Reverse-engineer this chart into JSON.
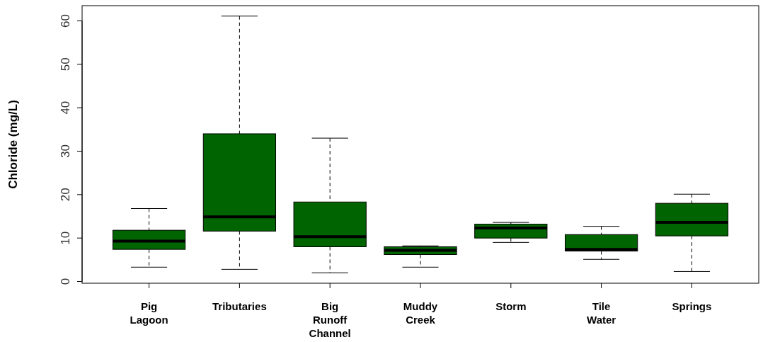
{
  "chart_data": {
    "type": "box",
    "ylabel": "Chloride (mg/L)",
    "categories": [
      "Pig Lagoon",
      "Tributaries",
      "Big Runoff Channel",
      "Muddy Creek",
      "Storm",
      "Tile Water",
      "Springs"
    ],
    "color": "#006400",
    "ylim": [
      -0.4,
      63.5
    ],
    "yticks": [
      0,
      10,
      20,
      30,
      40,
      50,
      60
    ],
    "grid": false,
    "boxes": [
      {
        "low": 3.3,
        "q1": 7.4,
        "median": 9.3,
        "q3": 11.8,
        "high": 16.8
      },
      {
        "low": 2.8,
        "q1": 11.6,
        "median": 14.9,
        "q3": 34.0,
        "high": 61.1
      },
      {
        "low": 2.0,
        "q1": 8.0,
        "median": 10.3,
        "q3": 18.3,
        "high": 33.0
      },
      {
        "low": 3.3,
        "q1": 6.2,
        "median": 7.2,
        "q3": 8.0,
        "high": 8.2
      },
      {
        "low": 9.0,
        "q1": 10.0,
        "median": 12.3,
        "q3": 13.2,
        "high": 13.6
      },
      {
        "low": 5.1,
        "q1": 7.0,
        "median": 7.4,
        "q3": 10.8,
        "high": 12.7
      },
      {
        "low": 2.3,
        "q1": 10.5,
        "median": 13.6,
        "q3": 18.0,
        "high": 20.1
      }
    ]
  }
}
